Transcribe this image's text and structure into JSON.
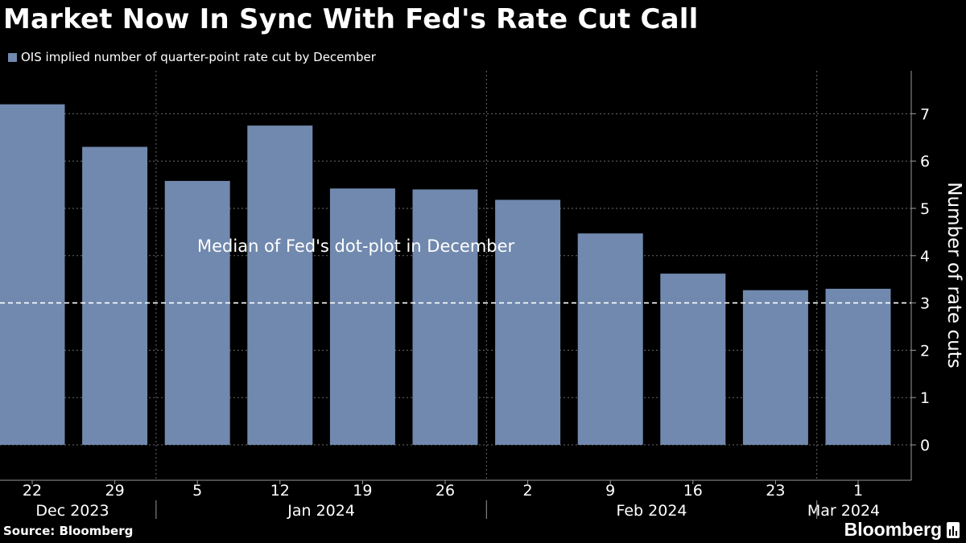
{
  "title": "Market Now In Sync With Fed's Rate Cut Call",
  "legend": {
    "label": "OIS implied number of quarter-point rate cut by December",
    "color": "#7189AE"
  },
  "source": "Source: Bloomberg",
  "brand": "Bloomberg",
  "chart_data": {
    "type": "bar",
    "categories": [
      "22",
      "29",
      "5",
      "12",
      "19",
      "26",
      "2",
      "9",
      "16",
      "23",
      "1"
    ],
    "months": [
      {
        "label": "Dec 2023",
        "start_index": 0
      },
      {
        "label": "Jan 2024",
        "start_index": 2
      },
      {
        "label": "Feb 2024",
        "start_index": 6
      },
      {
        "label": "Mar 2024",
        "start_index": 10
      }
    ],
    "series": [
      {
        "name": "OIS implied number of quarter-point rate cut by December",
        "values": [
          7.2,
          6.3,
          5.58,
          6.75,
          5.42,
          5.4,
          5.18,
          4.47,
          3.62,
          3.27,
          3.3
        ]
      }
    ],
    "ylabel": "Number of rate cuts",
    "ylim": [
      -0.75,
      7.85
    ],
    "yticks": [
      0,
      1,
      2,
      3,
      4,
      5,
      6,
      7
    ],
    "reference_line": {
      "value": 3,
      "label": "Median of Fed's dot-plot in December"
    },
    "colors": {
      "bar": "#7189AE",
      "grid": "#6b6b6b",
      "reference": "#ffffff"
    },
    "grid": true,
    "y_axis_position": "right"
  }
}
